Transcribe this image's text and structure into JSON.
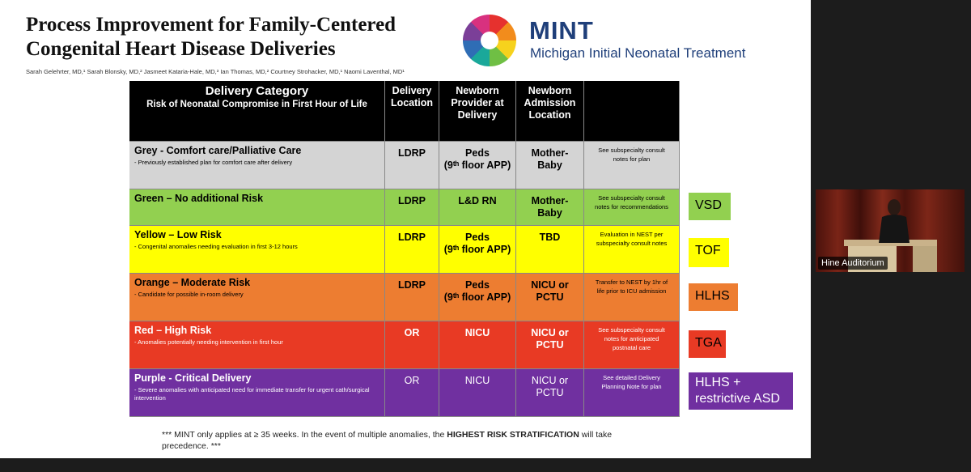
{
  "slide": {
    "title_lines": [
      "Process Improvement for Family-Centered",
      "Congenital Heart Disease Deliveries"
    ],
    "authors": "Sarah Gelehrter, MD,¹ Sarah Blonsky, MD,² Jasmeet Kataria-Hale, MD,³ Ian Thomas, MD,² Courtney Strohacker, MD,¹ Naomi Laventhal, MD¹",
    "logo": {
      "name": "MINT",
      "subtitle": "Michigan Initial Neonatal Treatment"
    },
    "table": {
      "header": {
        "category": [
          "Delivery Category",
          "Risk of Neonatal Compromise in First Hour of Life"
        ],
        "columns": [
          [
            "Delivery",
            "Location"
          ],
          [
            "Newborn",
            "Provider at",
            "Delivery"
          ],
          [
            "Newborn",
            "Admission",
            "Location"
          ]
        ]
      },
      "rows": [
        {
          "category": "Grey - Comfort care/Palliative Care",
          "note": "- Previously established plan for comfort care after delivery",
          "location": [
            "LDRP"
          ],
          "provider": [
            "Peds",
            "(9ᵗʰ floor APP)"
          ],
          "admission": [
            "Mother-",
            "Baby"
          ],
          "plan": [
            "See subspecialty consult",
            "notes for plan"
          ],
          "color": "#d4d4d4",
          "text_color": "#000000"
        },
        {
          "category": "Green – No additional Risk",
          "note": "",
          "location": [
            "LDRP"
          ],
          "provider": [
            "L&D RN"
          ],
          "admission": [
            "Mother-",
            "Baby"
          ],
          "plan": [
            "See  subspecialty consult",
            "notes for recommendations"
          ],
          "color": "#92d050",
          "text_color": "#000000"
        },
        {
          "category": "Yellow – Low Risk",
          "note": "- Congenital anomalies needing evaluation in first 3-12 hours",
          "location": [
            "LDRP"
          ],
          "provider": [
            "Peds",
            "(9ᵗʰ floor APP)"
          ],
          "admission": [
            "TBD"
          ],
          "plan": [
            "Evaluation in NEST per",
            "subspecialty consult notes"
          ],
          "color": "#ffff00",
          "text_color": "#000000"
        },
        {
          "category": "Orange – Moderate Risk",
          "note": "- Candidate for possible in-room delivery",
          "location": [
            "LDRP"
          ],
          "provider": [
            "Peds",
            "(9ᵗʰ floor APP)"
          ],
          "admission": [
            "NICU or",
            "PCTU"
          ],
          "plan": [
            "Transfer to NEST by 1hr of",
            "life prior to ICU admission"
          ],
          "color": "#ed7d31",
          "text_color": "#000000"
        },
        {
          "category": "Red – High Risk",
          "note": "- Anomalies potentially needing intervention in first hour",
          "location": [
            "OR"
          ],
          "provider": [
            "NICU"
          ],
          "admission": [
            "NICU or",
            "PCTU"
          ],
          "plan": [
            "See subspecialty consult",
            "notes for anticipated",
            "postnatal care"
          ],
          "color": "#e83a24",
          "text_color": "#ffffff"
        },
        {
          "category": "Purple -  Critical Delivery",
          "note": "-  Severe anomalies with anticipated need for immediate transfer for urgent cath/surgical intervention",
          "location": [
            "OR"
          ],
          "provider": [
            "NICU"
          ],
          "admission": [
            "NICU or",
            "PCTU"
          ],
          "plan": [
            "See detailed Delivery",
            "Planning Note for plan"
          ],
          "color": "#7030a0",
          "text_color": "#ffffff"
        }
      ]
    },
    "examples": [
      {
        "lines": [
          "VSD"
        ],
        "color": "#92d050",
        "text_color": "#000000"
      },
      {
        "lines": [
          "TOF"
        ],
        "color": "#ffff00",
        "text_color": "#000000"
      },
      {
        "lines": [
          "HLHS"
        ],
        "color": "#ed7d31",
        "text_color": "#000000"
      },
      {
        "lines": [
          "TGA"
        ],
        "color": "#e83a24",
        "text_color": "#000000"
      },
      {
        "lines": [
          "HLHS +",
          "restrictive ASD"
        ],
        "color": "#7030a0",
        "text_color": "#ffffff"
      }
    ],
    "footnote": [
      "*** MINT only applies at ≥ 35 weeks. In the event of multiple anomalies, the ",
      "HIGHEST RISK STRATIFICATION",
      " will take precedence. ***"
    ]
  },
  "speaker": {
    "label": "Hine Auditorium"
  }
}
